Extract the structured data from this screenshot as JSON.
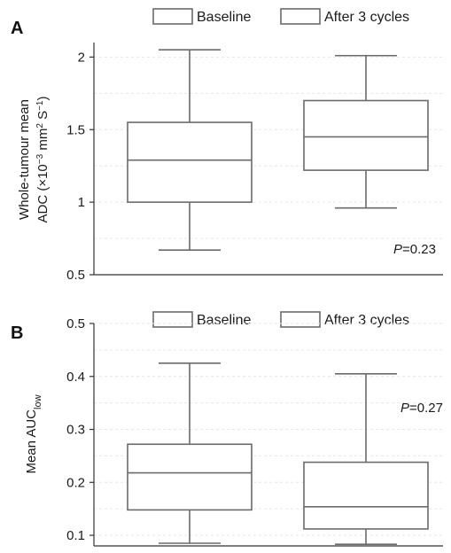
{
  "colors": {
    "box_stroke": "#6b6b6b",
    "axis": "#333333",
    "grid": "#e4e4e4"
  },
  "chart_data": [
    {
      "type": "box",
      "panel": "A",
      "ylabel_line1": "Whole-tumour mean",
      "ylabel_line2_prefix": "ADC (×10",
      "ylabel_exp1": "−3",
      "ylabel_mid": " mm",
      "ylabel_exp2": "2",
      "ylabel_mid2": " S",
      "ylabel_exp3": "−1",
      "ylabel_suffix": ")",
      "ylim": [
        0.5,
        2.1
      ],
      "yticks": [
        0.5,
        1,
        1.5,
        2
      ],
      "ytick_labels": [
        "0.5",
        "1",
        "1.5",
        "2"
      ],
      "grid": true,
      "legend": [
        "Baseline",
        "After 3 cycles"
      ],
      "legend_placement": "top",
      "p_italic": "P",
      "p_rest": "=0.23",
      "p_placement": "bottom-right",
      "series": [
        {
          "name": "Baseline",
          "min": 0.67,
          "q1": 1.0,
          "median": 1.29,
          "q3": 1.55,
          "max": 2.05
        },
        {
          "name": "After 3 cycles",
          "min": 0.96,
          "q1": 1.22,
          "median": 1.45,
          "q3": 1.7,
          "max": 2.01
        }
      ]
    },
    {
      "type": "box",
      "panel": "B",
      "ylabel_main": "Mean AUC",
      "ylabel_sub": "low",
      "ylim": [
        0.08,
        0.5
      ],
      "yticks": [
        0.1,
        0.2,
        0.3,
        0.4,
        0.5
      ],
      "ytick_labels": [
        "0.1",
        "0.2",
        "0.3",
        "0.4",
        "0.5"
      ],
      "grid": true,
      "legend": [
        "Baseline",
        "After 3 cycles"
      ],
      "legend_placement": "top",
      "p_italic": "P",
      "p_rest": "=0.27",
      "p_placement": "top-right",
      "series": [
        {
          "name": "Baseline",
          "min": 0.085,
          "q1": 0.148,
          "median": 0.218,
          "q3": 0.272,
          "max": 0.425
        },
        {
          "name": "After 3 cycles",
          "min": 0.083,
          "q1": 0.112,
          "median": 0.154,
          "q3": 0.238,
          "max": 0.405
        }
      ]
    }
  ]
}
